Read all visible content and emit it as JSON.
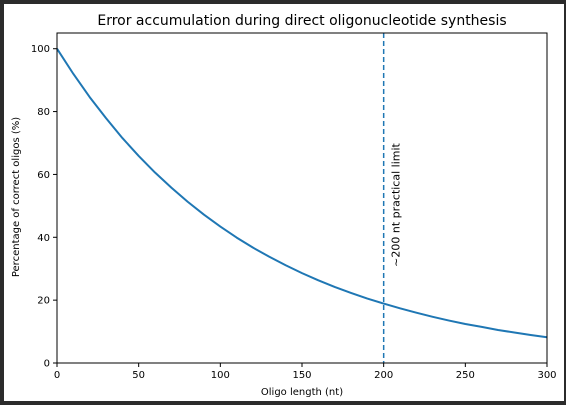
{
  "colors": {
    "background": "#ffffff",
    "outer_frame": "#2b2b2b",
    "series_line": "#1f77b4",
    "axis": "#000000"
  },
  "chart_data": {
    "type": "line",
    "title": "Error accumulation during direct oligonucleotide synthesis",
    "xlabel": "Oligo length (nt)",
    "ylabel": "Percentage of correct oligos (%)",
    "xlim": [
      0,
      300
    ],
    "ylim": [
      0,
      105
    ],
    "x_ticks": [
      0,
      50,
      100,
      150,
      200,
      250,
      300
    ],
    "y_ticks": [
      0,
      20,
      40,
      60,
      80,
      100
    ],
    "grid": false,
    "legend": "none",
    "series": [
      {
        "x": [
          0,
          10,
          20,
          30,
          40,
          50,
          60,
          70,
          80,
          90,
          100,
          110,
          120,
          130,
          140,
          150,
          160,
          170,
          180,
          190,
          200,
          210,
          220,
          230,
          240,
          250,
          260,
          270,
          280,
          290,
          300
        ],
        "y": [
          100,
          92.0,
          84.6,
          77.9,
          71.6,
          65.9,
          60.6,
          55.8,
          51.3,
          47.2,
          43.4,
          39.9,
          36.7,
          33.8,
          31.1,
          28.6,
          26.3,
          24.2,
          22.3,
          20.5,
          18.9,
          17.4,
          16.0,
          14.7,
          13.5,
          12.4,
          11.5,
          10.5,
          9.7,
          8.9,
          8.2
        ],
        "color": "#1f77b4"
      }
    ],
    "annotations": [
      {
        "type": "vline",
        "x": 200,
        "style": "dashed",
        "color": "#1f77b4",
        "text": "~200 nt practical limit"
      }
    ]
  }
}
